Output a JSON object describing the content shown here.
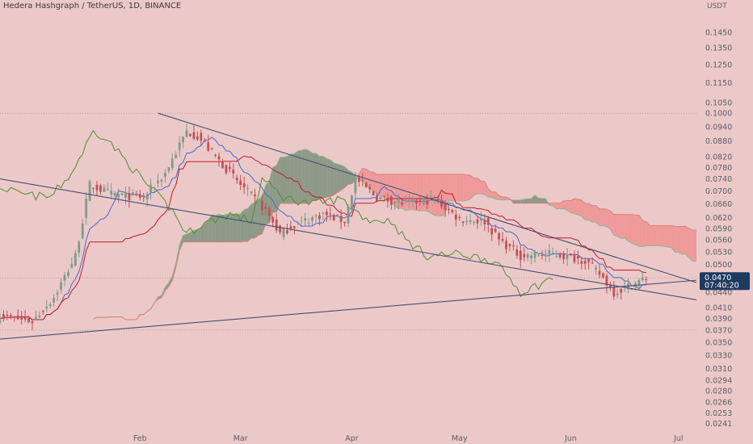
{
  "header": {
    "title": "Hedera Hashgraph / TetherUS, 1D, BINANCE"
  },
  "chart_data": {
    "type": "candlestick",
    "currency": "USDT",
    "price_axis": {
      "scale": "log",
      "range": [
        0.0232,
        0.168
      ],
      "ticks": [
        "0.1450",
        "0.1350",
        "0.1250",
        "0.1150",
        "0.1050",
        "0.1000",
        "0.0940",
        "0.0880",
        "0.0820",
        "0.0780",
        "0.0740",
        "0.0700",
        "0.0660",
        "0.0620",
        "0.0590",
        "0.0560",
        "0.0530",
        "0.0500",
        "0.0440",
        "0.0410",
        "0.0390",
        "0.0370",
        "0.0350",
        "0.0330",
        "0.0310",
        "0.0294",
        "0.0280",
        "0.0266",
        "0.0253",
        "0.0241"
      ]
    },
    "time_axis": {
      "start": "2021-12-24",
      "end": "2022-07-06",
      "months": [
        {
          "label": "Feb",
          "date": "2022-02-01"
        },
        {
          "label": "Mar",
          "date": "2022-03-01"
        },
        {
          "label": "Apr",
          "date": "2022-04-01"
        },
        {
          "label": "May",
          "date": "2022-05-01"
        },
        {
          "label": "Jun",
          "date": "2022-06-01"
        },
        {
          "label": "Jul",
          "date": "2022-07-01"
        }
      ]
    },
    "current_price": {
      "value": "0.0470",
      "countdown": "07:40:20",
      "color": "#1e3a5f"
    },
    "horizontal_levels": [
      0.1,
      0.047,
      0.037
    ],
    "key_prices": [
      {
        "date": "2021-12-24",
        "close": 0.0395
      },
      {
        "date": "2022-01-02",
        "close": 0.0385
      },
      {
        "date": "2022-01-08",
        "close": 0.043
      },
      {
        "date": "2022-01-14",
        "close": 0.052
      },
      {
        "date": "2022-01-18",
        "close": 0.072
      },
      {
        "date": "2022-01-24",
        "close": 0.069
      },
      {
        "date": "2022-02-02",
        "close": 0.068
      },
      {
        "date": "2022-02-08",
        "close": 0.076
      },
      {
        "date": "2022-02-14",
        "close": 0.092
      },
      {
        "date": "2022-02-17",
        "close": 0.09
      },
      {
        "date": "2022-02-22",
        "close": 0.082
      },
      {
        "date": "2022-03-01",
        "close": 0.072
      },
      {
        "date": "2022-03-08",
        "close": 0.064
      },
      {
        "date": "2022-03-12",
        "close": 0.0575
      },
      {
        "date": "2022-03-16",
        "close": 0.06
      },
      {
        "date": "2022-03-24",
        "close": 0.063
      },
      {
        "date": "2022-03-30",
        "close": 0.061
      },
      {
        "date": "2022-04-02",
        "close": 0.074
      },
      {
        "date": "2022-04-08",
        "close": 0.068
      },
      {
        "date": "2022-04-16",
        "close": 0.066
      },
      {
        "date": "2022-04-24",
        "close": 0.0675
      },
      {
        "date": "2022-05-01",
        "close": 0.0615
      },
      {
        "date": "2022-05-08",
        "close": 0.061
      },
      {
        "date": "2022-05-12",
        "close": 0.056
      },
      {
        "date": "2022-05-18",
        "close": 0.052
      },
      {
        "date": "2022-05-27",
        "close": 0.0525
      },
      {
        "date": "2022-06-05",
        "close": 0.051
      },
      {
        "date": "2022-06-10",
        "close": 0.047
      },
      {
        "date": "2022-06-13",
        "close": 0.044
      },
      {
        "date": "2022-06-18",
        "close": 0.0455
      },
      {
        "date": "2022-06-22",
        "close": 0.047
      }
    ],
    "trendlines": [
      {
        "from": {
          "date": "2022-02-06",
          "price": 0.1
        },
        "to": {
          "date": "2022-07-06",
          "price": 0.046
        }
      },
      {
        "from": {
          "date": "2021-12-24",
          "price": 0.074
        },
        "to": {
          "date": "2022-07-06",
          "price": 0.0425
        }
      },
      {
        "from": {
          "date": "2021-12-24",
          "price": 0.0355
        },
        "to": {
          "date": "2022-07-06",
          "price": 0.0465
        }
      }
    ],
    "indicators": [
      "Ichimoku cloud",
      "tenkan-sen",
      "kijun-sen",
      "chikou span"
    ],
    "colors": {
      "background": "#ecc9c9",
      "up_candle": "#7e9a89",
      "down_candle": "#c24f56",
      "tenkan": "#3f6bd6",
      "kijun": "#c21a24",
      "chikou": "#4f8f2e",
      "cloud_bull": "#6f8a72",
      "cloud_bear": "#f08a8a",
      "trendline": "#435073",
      "axis_text": "#5a5e6a"
    }
  }
}
